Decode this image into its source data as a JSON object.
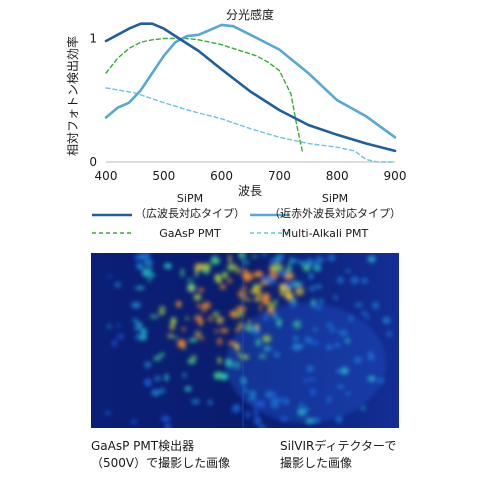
{
  "chart_data": {
    "type": "line",
    "title": "分光感度",
    "xlabel": "波長",
    "ylabel": "相対フォトン検出効率",
    "xlim": [
      400,
      900
    ],
    "ylim": [
      0,
      1.15
    ],
    "xticks": [
      "400",
      "500",
      "600",
      "700",
      "800",
      "900"
    ],
    "yticks": [
      {
        "value": 0,
        "label": "0"
      },
      {
        "value": 1,
        "label": "1"
      }
    ],
    "grid": false,
    "legend_position": "bottom",
    "series": [
      {
        "name": "SiPM\n（広波長対応タイプ）",
        "color": "#1f5fa0",
        "style": "solid",
        "x": [
          400,
          420,
          440,
          460,
          480,
          500,
          520,
          540,
          560,
          600,
          650,
          700,
          750,
          800,
          850,
          900
        ],
        "y": [
          0.98,
          1.03,
          1.08,
          1.12,
          1.12,
          1.08,
          1.02,
          0.96,
          0.9,
          0.75,
          0.57,
          0.42,
          0.3,
          0.22,
          0.15,
          0.09
        ]
      },
      {
        "name": "SiPM\n（近赤外波長対応タイプ）",
        "color": "#55a9d2",
        "style": "solid",
        "x": [
          400,
          420,
          440,
          460,
          480,
          500,
          520,
          540,
          560,
          580,
          600,
          620,
          650,
          700,
          750,
          800,
          850,
          900
        ],
        "y": [
          0.36,
          0.44,
          0.48,
          0.58,
          0.72,
          0.86,
          0.97,
          1.02,
          1.03,
          1.07,
          1.11,
          1.1,
          1.03,
          0.91,
          0.72,
          0.5,
          0.37,
          0.2
        ]
      },
      {
        "name": "GaAsP PMT",
        "color": "#3aab3a",
        "style": "dashed",
        "x": [
          400,
          420,
          440,
          460,
          480,
          500,
          520,
          540,
          560,
          580,
          600,
          620,
          640,
          660,
          680,
          700,
          720,
          730,
          740
        ],
        "y": [
          0.72,
          0.84,
          0.92,
          0.97,
          0.99,
          1.0,
          1.0,
          1.0,
          0.99,
          0.97,
          0.95,
          0.92,
          0.89,
          0.86,
          0.81,
          0.74,
          0.55,
          0.3,
          0.08
        ]
      },
      {
        "name": "Multi-Alkali  PMT",
        "color": "#6cc3df",
        "style": "dashed",
        "x": [
          400,
          450,
          500,
          550,
          600,
          650,
          700,
          750,
          800,
          830,
          850,
          870,
          900
        ],
        "y": [
          0.6,
          0.56,
          0.48,
          0.41,
          0.35,
          0.27,
          0.2,
          0.15,
          0.12,
          0.09,
          0.02,
          0.0,
          0.0
        ]
      }
    ]
  },
  "captions": {
    "left": "GaAsP PMT検出器\n（500V）で撮影した画像",
    "right": "SilVIRディテクターで\n撮影した画像"
  }
}
